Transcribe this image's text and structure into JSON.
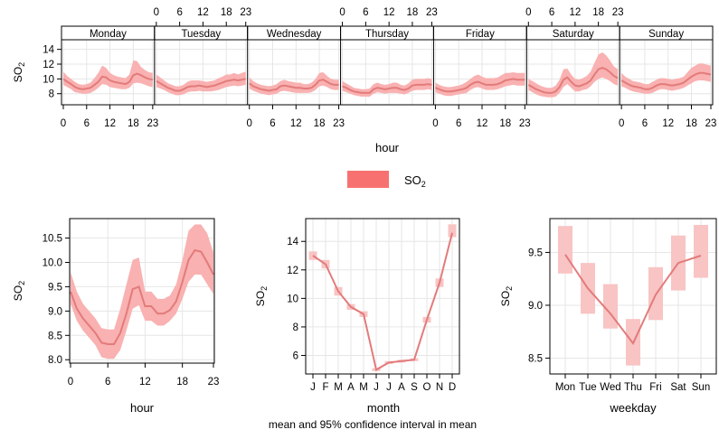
{
  "colors": {
    "series_line": "#E37B7B",
    "ci_band": "#F9B1B1",
    "box": "#F8C4C4",
    "grid": "#E6E6E6",
    "legend_swatch": "#F87171"
  },
  "legend": {
    "label": "SO2"
  },
  "caption": "mean and 95% confidence interval in mean",
  "chart_data": [
    {
      "type": "line",
      "panel": "weekday-hour",
      "xlabel": "hour",
      "ylabel": "SO2",
      "ylim": [
        6.5,
        15.3
      ],
      "x_ticks": [
        0,
        6,
        12,
        18,
        23
      ],
      "y_ticks": [
        8,
        10,
        12,
        14
      ],
      "grid": true,
      "days": [
        {
          "label": "Monday",
          "values": [
            10.0,
            9.6,
            9.3,
            8.9,
            8.7,
            8.6,
            8.7,
            8.8,
            9.2,
            9.6,
            10.3,
            10.2,
            9.8,
            9.6,
            9.5,
            9.4,
            9.3,
            9.6,
            10.5,
            10.7,
            10.5,
            10.2,
            10.0,
            9.9
          ],
          "lower": [
            9.2,
            8.9,
            8.6,
            8.2,
            8.1,
            8.0,
            8.0,
            8.1,
            8.4,
            8.8,
            9.3,
            9.2,
            8.9,
            8.8,
            8.7,
            8.6,
            8.6,
            8.8,
            9.4,
            9.5,
            9.4,
            9.2,
            9.0,
            8.9
          ],
          "upper": [
            11.0,
            10.4,
            10.0,
            9.6,
            9.3,
            9.2,
            9.3,
            9.5,
            10.1,
            10.8,
            11.8,
            11.5,
            10.8,
            10.5,
            10.3,
            10.2,
            10.1,
            10.6,
            12.5,
            12.4,
            11.6,
            11.2,
            10.9,
            10.8
          ]
        },
        {
          "label": "Tuesday",
          "values": [
            9.7,
            9.4,
            9.1,
            8.8,
            8.6,
            8.4,
            8.4,
            8.6,
            8.9,
            9.0,
            9.0,
            9.1,
            9.0,
            8.9,
            9.0,
            9.1,
            9.3,
            9.5,
            9.7,
            9.8,
            9.9,
            9.8,
            9.9,
            10.0
          ],
          "lower": [
            8.9,
            8.7,
            8.5,
            8.2,
            8.0,
            7.8,
            7.8,
            7.9,
            8.2,
            8.3,
            8.3,
            8.4,
            8.3,
            8.3,
            8.3,
            8.4,
            8.5,
            8.7,
            8.9,
            9.0,
            9.1,
            9.0,
            9.1,
            9.2
          ],
          "upper": [
            10.6,
            10.2,
            9.8,
            9.4,
            9.2,
            9.0,
            9.0,
            9.2,
            9.6,
            9.8,
            9.8,
            9.8,
            9.7,
            9.6,
            9.7,
            9.8,
            10.1,
            10.3,
            10.6,
            10.6,
            10.8,
            10.6,
            10.8,
            11.0
          ]
        },
        {
          "label": "Wednesday",
          "values": [
            9.4,
            9.0,
            8.8,
            8.6,
            8.5,
            8.4,
            8.5,
            8.6,
            9.0,
            9.1,
            9.0,
            8.9,
            8.8,
            8.8,
            8.7,
            8.7,
            8.8,
            9.2,
            9.8,
            9.9,
            9.6,
            9.3,
            9.2,
            9.2
          ],
          "lower": [
            8.7,
            8.4,
            8.2,
            8.0,
            7.9,
            7.8,
            7.9,
            8.0,
            8.3,
            8.4,
            8.3,
            8.2,
            8.1,
            8.1,
            8.1,
            8.1,
            8.2,
            8.5,
            9.0,
            9.1,
            8.9,
            8.6,
            8.5,
            8.5
          ],
          "upper": [
            10.2,
            9.7,
            9.4,
            9.2,
            9.1,
            9.0,
            9.1,
            9.3,
            9.7,
            9.9,
            9.7,
            9.6,
            9.5,
            9.5,
            9.3,
            9.3,
            9.5,
            10.0,
            10.8,
            10.9,
            10.4,
            10.0,
            9.9,
            9.9
          ]
        },
        {
          "label": "Thursday",
          "values": [
            9.0,
            8.8,
            8.5,
            8.3,
            8.2,
            8.1,
            8.1,
            8.1,
            8.6,
            8.8,
            8.7,
            8.6,
            8.7,
            8.8,
            8.8,
            8.6,
            8.5,
            8.7,
            9.1,
            9.2,
            9.2,
            9.2,
            9.3,
            9.2
          ],
          "lower": [
            8.4,
            8.2,
            8.0,
            7.8,
            7.7,
            7.6,
            7.6,
            7.6,
            8.0,
            8.2,
            8.1,
            8.0,
            8.1,
            8.1,
            8.1,
            8.0,
            7.9,
            8.1,
            8.4,
            8.5,
            8.5,
            8.5,
            8.6,
            8.5
          ],
          "upper": [
            9.7,
            9.4,
            9.1,
            8.8,
            8.7,
            8.6,
            8.6,
            8.7,
            9.3,
            9.5,
            9.3,
            9.2,
            9.3,
            9.5,
            9.5,
            9.2,
            9.1,
            9.4,
            9.9,
            10.0,
            10.0,
            10.0,
            10.1,
            10.0
          ]
        },
        {
          "label": "Friday",
          "values": [
            8.8,
            8.6,
            8.4,
            8.3,
            8.3,
            8.4,
            8.5,
            8.6,
            8.8,
            9.2,
            9.5,
            9.6,
            9.4,
            9.2,
            9.2,
            9.2,
            9.3,
            9.5,
            9.8,
            9.9,
            10.0,
            9.9,
            9.9,
            9.9
          ],
          "lower": [
            8.2,
            8.0,
            7.8,
            7.7,
            7.7,
            7.8,
            7.9,
            8.0,
            8.1,
            8.5,
            8.8,
            8.9,
            8.7,
            8.5,
            8.5,
            8.5,
            8.6,
            8.8,
            9.0,
            9.1,
            9.2,
            9.1,
            9.1,
            9.1
          ],
          "upper": [
            9.5,
            9.2,
            9.0,
            8.9,
            8.9,
            9.0,
            9.1,
            9.3,
            9.6,
            10.0,
            10.4,
            10.6,
            10.3,
            10.1,
            10.1,
            10.1,
            10.2,
            10.5,
            10.8,
            10.8,
            10.9,
            10.8,
            10.8,
            10.8
          ]
        },
        {
          "label": "Saturday",
          "values": [
            9.2,
            8.9,
            8.6,
            8.4,
            8.2,
            8.1,
            8.1,
            8.3,
            8.9,
            9.9,
            10.2,
            9.6,
            9.1,
            9.0,
            9.2,
            9.4,
            9.8,
            10.6,
            11.3,
            11.5,
            11.3,
            10.9,
            10.4,
            10.1
          ],
          "lower": [
            8.5,
            8.2,
            7.9,
            7.7,
            7.6,
            7.5,
            7.5,
            7.6,
            8.1,
            8.9,
            9.3,
            8.8,
            8.3,
            8.3,
            8.5,
            8.6,
            9.0,
            9.6,
            10.0,
            10.2,
            10.0,
            9.7,
            9.3,
            9.1
          ],
          "upper": [
            10.0,
            9.7,
            9.4,
            9.1,
            8.9,
            8.8,
            8.8,
            9.1,
            9.9,
            11.3,
            11.4,
            10.6,
            10.0,
            9.9,
            10.1,
            10.4,
            11.0,
            12.2,
            13.3,
            13.6,
            13.2,
            12.5,
            11.7,
            11.3
          ]
        },
        {
          "label": "Sunday",
          "values": [
            9.8,
            9.5,
            9.2,
            9.0,
            8.9,
            8.8,
            8.6,
            8.6,
            8.8,
            9.1,
            9.3,
            9.3,
            9.2,
            9.1,
            9.2,
            9.3,
            9.5,
            9.9,
            10.3,
            10.6,
            10.8,
            10.8,
            10.7,
            10.6
          ],
          "lower": [
            9.0,
            8.8,
            8.5,
            8.3,
            8.2,
            8.1,
            8.0,
            8.0,
            8.1,
            8.4,
            8.6,
            8.6,
            8.5,
            8.4,
            8.5,
            8.6,
            8.8,
            9.1,
            9.4,
            9.7,
            9.8,
            9.8,
            9.7,
            9.6
          ],
          "upper": [
            10.8,
            10.3,
            10.0,
            9.7,
            9.6,
            9.5,
            9.3,
            9.3,
            9.6,
            9.9,
            10.1,
            10.1,
            10.0,
            9.9,
            10.0,
            10.1,
            10.3,
            10.9,
            11.5,
            11.8,
            12.1,
            12.1,
            11.9,
            11.8
          ]
        }
      ]
    },
    {
      "type": "line",
      "panel": "hour",
      "xlabel": "hour",
      "ylabel": "SO2",
      "ylim": [
        7.93,
        10.9
      ],
      "x_ticks": [
        0,
        6,
        12,
        18,
        23
      ],
      "y_ticks": [
        "8.0",
        "8.5",
        "9.0",
        "9.5",
        "10.0",
        "10.5"
      ],
      "grid": true,
      "x": [
        0,
        1,
        2,
        3,
        4,
        5,
        6,
        7,
        8,
        9,
        10,
        11,
        12,
        13,
        14,
        15,
        16,
        17,
        18,
        19,
        20,
        21,
        22,
        23
      ],
      "values": [
        9.4,
        9.05,
        8.85,
        8.7,
        8.55,
        8.35,
        8.32,
        8.32,
        8.55,
        8.95,
        9.45,
        9.5,
        9.1,
        9.1,
        8.95,
        8.95,
        9.02,
        9.2,
        9.6,
        10.05,
        10.25,
        10.22,
        10.0,
        9.75
      ],
      "lower": [
        9.15,
        8.8,
        8.6,
        8.45,
        8.3,
        8.05,
        8.02,
        8.02,
        8.2,
        8.6,
        9.05,
        9.12,
        8.8,
        8.8,
        8.7,
        8.7,
        8.8,
        8.95,
        9.25,
        9.6,
        9.75,
        9.75,
        9.55,
        9.35
      ],
      "upper": [
        9.8,
        9.4,
        9.15,
        9.0,
        8.85,
        8.65,
        8.62,
        8.62,
        9.05,
        9.55,
        10.05,
        10.1,
        9.4,
        9.4,
        9.25,
        9.25,
        9.32,
        9.55,
        10.05,
        10.65,
        10.78,
        10.78,
        10.6,
        10.2
      ]
    },
    {
      "type": "line",
      "panel": "month",
      "xlabel": "month",
      "ylabel": "SO2",
      "ylim": [
        4.7,
        15.6
      ],
      "categories": [
        "J",
        "F",
        "M",
        "A",
        "M",
        "J",
        "J",
        "A",
        "S",
        "O",
        "N",
        "D"
      ],
      "y_ticks": [
        6,
        8,
        10,
        12,
        14
      ],
      "grid": true,
      "values": [
        13.0,
        12.4,
        10.5,
        9.4,
        8.9,
        5.0,
        5.5,
        5.6,
        5.7,
        8.5,
        11.1,
        14.6
      ],
      "lower": [
        12.7,
        12.1,
        10.2,
        9.2,
        8.7,
        4.9,
        5.4,
        5.5,
        5.6,
        8.3,
        10.8,
        14.3
      ],
      "upper": [
        13.3,
        12.7,
        10.8,
        9.6,
        9.1,
        5.1,
        5.6,
        5.7,
        5.8,
        8.7,
        11.4,
        15.2
      ]
    },
    {
      "type": "line",
      "panel": "weekday",
      "xlabel": "weekday",
      "ylabel": "SO2",
      "ylim": [
        8.35,
        9.82
      ],
      "categories": [
        "Mon",
        "Tue",
        "Wed",
        "Thu",
        "Fri",
        "Sat",
        "Sun"
      ],
      "y_ticks": [
        "8.5",
        "9.0",
        "9.5"
      ],
      "grid": true,
      "values": [
        9.48,
        9.16,
        8.92,
        8.64,
        9.1,
        9.4,
        9.47
      ],
      "lower": [
        9.3,
        8.92,
        8.78,
        8.43,
        8.86,
        9.14,
        9.26
      ],
      "upper": [
        9.75,
        9.4,
        9.2,
        8.87,
        9.36,
        9.66,
        9.76
      ]
    }
  ]
}
